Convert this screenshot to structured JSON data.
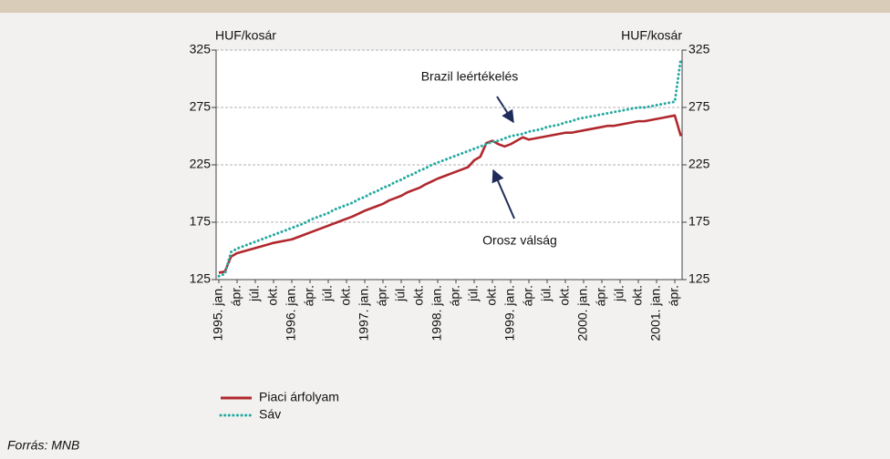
{
  "chart_data": {
    "type": "line",
    "y_label": "HUF/kosár",
    "y2_label": "HUF/kosár",
    "source": "Forrás: MNB",
    "categories": [
      "1995. jan.",
      null,
      null,
      "ápr.",
      null,
      null,
      "júl.",
      null,
      null,
      "okt.",
      null,
      null,
      "1996. jan.",
      null,
      null,
      "ápr.",
      null,
      null,
      "júl.",
      null,
      null,
      "okt.",
      null,
      null,
      "1997. jan.",
      null,
      null,
      "ápr.",
      null,
      null,
      "júl.",
      null,
      null,
      "okt.",
      null,
      null,
      "1998. jan.",
      null,
      null,
      "ápr.",
      null,
      null,
      "júl.",
      null,
      null,
      "okt.",
      null,
      null,
      "1999. jan.",
      null,
      null,
      "ápr.",
      null,
      null,
      "júl.",
      null,
      null,
      "okt.",
      null,
      null,
      "2000. jan.",
      null,
      null,
      "ápr.",
      null,
      null,
      "júl.",
      null,
      null,
      "okt.",
      null,
      null,
      "2001. jan.",
      null,
      null,
      "ápr.",
      null
    ],
    "series": [
      {
        "name": "Piaci árfolyam",
        "color": "#b0282d",
        "style": "solid",
        "values": [
          131,
          132,
          145,
          148,
          149.5,
          151,
          152.5,
          154,
          155.5,
          157,
          158,
          159,
          160,
          162,
          164,
          166,
          168,
          170,
          172,
          174,
          176,
          178,
          180,
          182.5,
          185,
          187,
          189,
          191,
          194,
          196,
          198,
          201,
          203,
          205,
          208,
          210.5,
          213,
          215,
          217,
          219,
          221,
          223,
          229,
          232,
          244,
          246,
          243,
          241,
          243,
          246,
          249,
          247,
          248,
          249,
          250,
          251,
          252,
          253,
          253,
          254,
          255,
          256,
          257,
          258,
          259,
          259,
          260,
          261,
          262,
          263,
          263,
          264,
          265,
          266,
          267,
          268,
          250
        ]
      },
      {
        "name": "Sáv",
        "color": "#26aaa0",
        "style": "dotted",
        "values": [
          128,
          130,
          149,
          152,
          154,
          156,
          158,
          160,
          162,
          164,
          166,
          168,
          170,
          172,
          174,
          177,
          179,
          181,
          183,
          186,
          188,
          190,
          192,
          195,
          197,
          200,
          202,
          205,
          207,
          210,
          212,
          215,
          217,
          220,
          222,
          225,
          227,
          229,
          231,
          233,
          235,
          237,
          239,
          241,
          243,
          245,
          246,
          248,
          250,
          251,
          252,
          254,
          255,
          256,
          258,
          259,
          260,
          262,
          263,
          265,
          266,
          267,
          268,
          269,
          270,
          271,
          272,
          273,
          274,
          275,
          275,
          276,
          277,
          278,
          279,
          280,
          318
        ]
      }
    ],
    "ylim": [
      125,
      325
    ],
    "yticks": [
      125,
      175,
      225,
      275,
      325
    ],
    "y2lim": [
      125,
      325
    ],
    "y2ticks": [
      125,
      175,
      225,
      275,
      325
    ],
    "grid": true,
    "annotations": [
      {
        "text": "Brazil leértékelés",
        "category": 48
      },
      {
        "text": "Orosz válság",
        "category": 44
      }
    ]
  }
}
